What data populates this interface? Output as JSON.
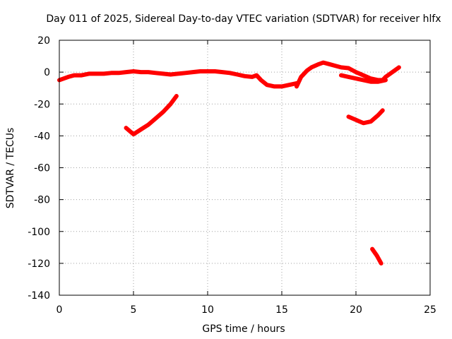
{
  "chart_data": {
    "type": "line",
    "title": "Day 011 of 2025, Sidereal Day-to-day VTEC variation (SDTVAR) for receiver hlfx",
    "xlabel": "GPS time / hours",
    "ylabel": "SDTVAR / TECUs",
    "xlim": [
      0,
      25
    ],
    "ylim": [
      -140,
      20
    ],
    "xticks": [
      0,
      5,
      10,
      15,
      20,
      25
    ],
    "yticks": [
      20,
      0,
      -20,
      -40,
      -60,
      -80,
      -100,
      -120,
      -140
    ],
    "grid": true,
    "series_color": "#ff0000",
    "series": [
      {
        "name": "main-trace",
        "points": [
          [
            0.0,
            -5
          ],
          [
            0.3,
            -4
          ],
          [
            0.6,
            -3
          ],
          [
            1.0,
            -2
          ],
          [
            1.5,
            -2
          ],
          [
            2.0,
            -1
          ],
          [
            2.5,
            -1
          ],
          [
            3.0,
            -1
          ],
          [
            3.5,
            -0.5
          ],
          [
            4.0,
            -0.5
          ],
          [
            4.5,
            0
          ],
          [
            5.0,
            0.5
          ],
          [
            5.5,
            0
          ],
          [
            6.0,
            0
          ],
          [
            6.5,
            -0.5
          ],
          [
            7.0,
            -1
          ],
          [
            7.5,
            -1.5
          ],
          [
            8.0,
            -1
          ],
          [
            8.5,
            -0.5
          ],
          [
            9.0,
            0
          ],
          [
            9.5,
            0.5
          ],
          [
            10.0,
            0.5
          ],
          [
            10.5,
            0.5
          ],
          [
            11.0,
            0
          ],
          [
            11.5,
            -0.5
          ],
          [
            12.0,
            -1.5
          ],
          [
            12.5,
            -2.5
          ],
          [
            13.0,
            -3
          ],
          [
            13.3,
            -2
          ],
          [
            13.6,
            -5
          ],
          [
            14.0,
            -8
          ],
          [
            14.5,
            -9
          ],
          [
            15.0,
            -9
          ],
          [
            15.5,
            -8
          ],
          [
            16.0,
            -7
          ]
        ]
      },
      {
        "name": "rise-trace",
        "points": [
          [
            16.0,
            -9
          ],
          [
            16.3,
            -3
          ],
          [
            16.7,
            1
          ],
          [
            17.0,
            3
          ],
          [
            17.5,
            5
          ],
          [
            17.8,
            6
          ],
          [
            18.2,
            5
          ],
          [
            18.6,
            4
          ],
          [
            19.0,
            3
          ],
          [
            19.5,
            2.5
          ],
          [
            20.0,
            0
          ],
          [
            20.5,
            -2
          ],
          [
            21.0,
            -4
          ],
          [
            21.5,
            -5
          ],
          [
            21.8,
            -5
          ],
          [
            22.0,
            -3
          ],
          [
            22.3,
            -1
          ],
          [
            22.6,
            1
          ],
          [
            22.9,
            3
          ]
        ]
      },
      {
        "name": "lower-branch",
        "points": [
          [
            19.0,
            -2
          ],
          [
            19.5,
            -3
          ],
          [
            20.0,
            -4
          ],
          [
            20.5,
            -5
          ],
          [
            21.0,
            -6
          ],
          [
            21.5,
            -6
          ],
          [
            22.0,
            -5
          ]
        ]
      },
      {
        "name": "segment-a",
        "points": [
          [
            4.5,
            -35
          ],
          [
            5.0,
            -39
          ],
          [
            5.5,
            -36
          ],
          [
            6.0,
            -33
          ],
          [
            6.5,
            -29
          ],
          [
            7.0,
            -25
          ],
          [
            7.5,
            -20
          ],
          [
            7.9,
            -15
          ]
        ]
      },
      {
        "name": "segment-b",
        "points": [
          [
            19.5,
            -28
          ],
          [
            20.0,
            -30
          ],
          [
            20.5,
            -32
          ],
          [
            21.0,
            -31
          ],
          [
            21.5,
            -27
          ],
          [
            21.8,
            -24
          ]
        ]
      },
      {
        "name": "segment-c",
        "points": [
          [
            21.1,
            -111
          ],
          [
            21.4,
            -115
          ],
          [
            21.7,
            -120
          ]
        ]
      }
    ]
  }
}
